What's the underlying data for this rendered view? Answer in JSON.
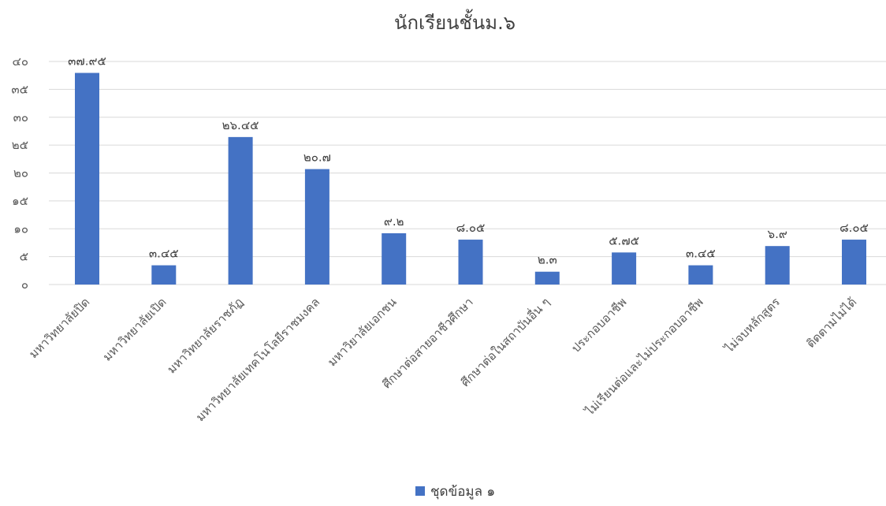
{
  "chart_data": {
    "type": "bar",
    "title": "นักเรียนชั้นม.๖",
    "categories": [
      "มหาวิทยาลัยปิด",
      "มหาวิทยาลัยเปิด",
      "มหาวิทยาลัยราชภัฏ",
      "มหาวิทยาลัยเทคโนโลยีราชมงคล",
      "มหาวิยาลัยเอกชน",
      "ศึกษาต่อสายอาชีวศึกษา",
      "ศึกษาต่อในสถาบันอื่น ๆ",
      "ประกอบอาชีพ",
      "ไม่เรียนต่อและไม่ประกอบอาชีพ",
      "ไม่จบหลักสูตร",
      "ติดตามไม่ได้"
    ],
    "series": [
      {
        "name": "ชุดข้อมูล ๑",
        "values": [
          37.95,
          3.45,
          26.45,
          20.7,
          9.2,
          8.05,
          2.3,
          5.75,
          3.45,
          6.9,
          8.05
        ],
        "labels": [
          "๓๗.๙๕",
          "๓.๔๕",
          "๒๖.๔๕",
          "๒๐.๗",
          "๙.๒",
          "๘.๐๕",
          "๒.๓",
          "๕.๗๕",
          "๓.๔๕",
          "๖.๙",
          "๘.๐๕"
        ],
        "color": "#4472C4"
      }
    ],
    "ylim": [
      0,
      40
    ],
    "yticks": [
      0,
      5,
      10,
      15,
      20,
      25,
      30,
      35,
      40
    ],
    "ytick_labels": [
      "๐",
      "๕",
      "๑๐",
      "๑๕",
      "๒๐",
      "๒๕",
      "๓๐",
      "๓๕",
      "๔๐"
    ],
    "grid": true,
    "legend_position": "bottom"
  }
}
